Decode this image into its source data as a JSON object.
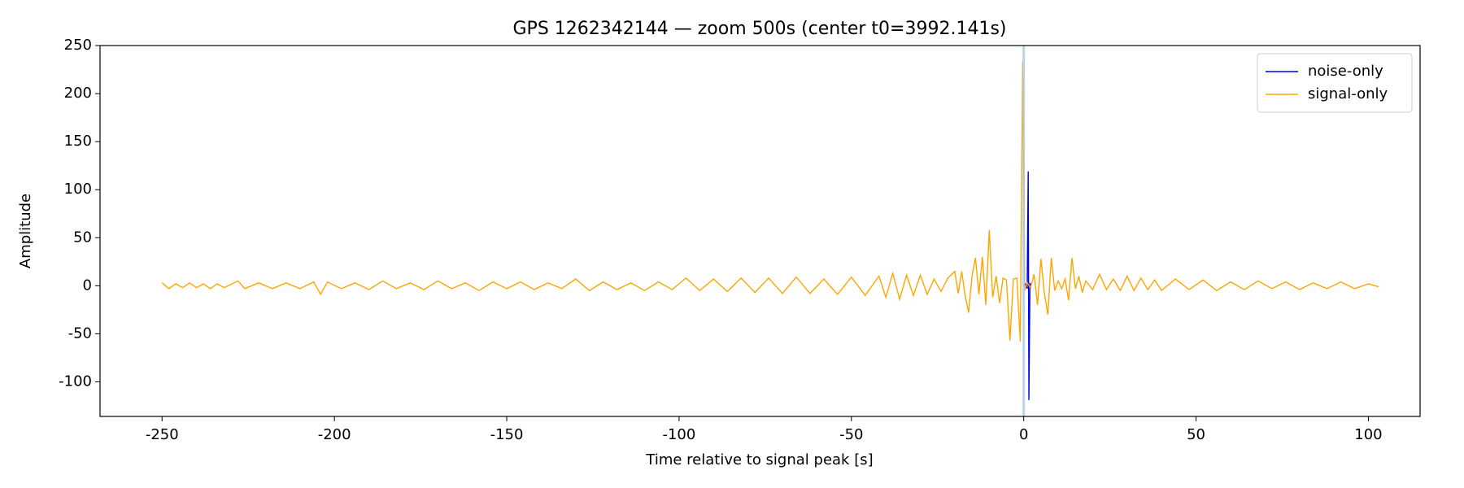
{
  "chart_data": {
    "type": "line",
    "title": "GPS 1262342144 — zoom 500s (center t0=3992.141s)",
    "x_label": "Time relative to signal peak [s]",
    "y_label": "Amplitude",
    "xlim": [
      -268,
      115
    ],
    "ylim": [
      -136,
      250
    ],
    "xticks": [
      -250,
      -200,
      -150,
      -100,
      -50,
      0,
      50,
      100
    ],
    "yticks": [
      -100,
      -50,
      0,
      50,
      100,
      150,
      200,
      250
    ],
    "legend": "upper right",
    "vline": {
      "x": 0,
      "color": "#a6c8e8"
    },
    "series": [
      {
        "name": "noise-only",
        "color": "#0000ee",
        "x": [
          0,
          0.5,
          1,
          1.3,
          1.5,
          1.8,
          2
        ],
        "values": [
          0,
          2,
          -3,
          119,
          -119,
          3,
          0
        ]
      },
      {
        "name": "signal-only",
        "color": "#ffa500",
        "x": [
          -250,
          -248,
          -246,
          -244,
          -242,
          -240,
          -238,
          -236,
          -234,
          -232,
          -228,
          -226,
          -222,
          -218,
          -214,
          -210,
          -206,
          -204,
          -202,
          -198,
          -194,
          -190,
          -186,
          -182,
          -178,
          -174,
          -170,
          -166,
          -162,
          -158,
          -154,
          -150,
          -146,
          -142,
          -138,
          -134,
          -130,
          -126,
          -122,
          -118,
          -114,
          -110,
          -106,
          -102,
          -98,
          -94,
          -90,
          -86,
          -82,
          -78,
          -74,
          -70,
          -66,
          -62,
          -58,
          -54,
          -50,
          -46,
          -42,
          -40,
          -38,
          -36,
          -34,
          -32,
          -30,
          -28,
          -26,
          -24,
          -22,
          -20,
          -19,
          -18,
          -17,
          -16,
          -15,
          -14,
          -13,
          -12,
          -11,
          -10,
          -9,
          -8,
          -7,
          -6,
          -5,
          -4,
          -3,
          -2,
          -1,
          -0.3,
          0.3,
          1,
          2,
          3,
          4,
          5,
          6,
          7,
          8,
          9,
          10,
          11,
          12,
          13,
          14,
          15,
          16,
          17,
          18,
          20,
          22,
          24,
          26,
          28,
          30,
          32,
          34,
          36,
          38,
          40,
          44,
          48,
          52,
          56,
          60,
          64,
          68,
          72,
          76,
          80,
          84,
          88,
          92,
          96,
          100,
          103
        ],
        "values": [
          3,
          -3,
          2,
          -2,
          3,
          -2,
          2,
          -3,
          2,
          -2,
          5,
          -3,
          3,
          -3,
          3,
          -3,
          4,
          -9,
          4,
          -3,
          3,
          -4,
          5,
          -3,
          3,
          -4,
          5,
          -3,
          3,
          -5,
          4,
          -3,
          4,
          -4,
          3,
          -3,
          7,
          -5,
          4,
          -4,
          3,
          -5,
          4,
          -4,
          8,
          -5,
          7,
          -6,
          8,
          -7,
          8,
          -8,
          9,
          -8,
          7,
          -9,
          9,
          -10,
          10,
          -12,
          13,
          -14,
          11,
          -10,
          11,
          -9,
          7,
          -6,
          8,
          15,
          -8,
          15,
          -10,
          -28,
          10,
          29,
          -9,
          30,
          -20,
          58,
          -12,
          10,
          -18,
          8,
          6,
          -57,
          7,
          8,
          -58,
          233,
          -5,
          3,
          -2,
          12,
          -20,
          28,
          -8,
          -30,
          29,
          -5,
          5,
          -3,
          7,
          -15,
          29,
          -3,
          10,
          -7,
          5,
          -4,
          12,
          -4,
          7,
          -5,
          10,
          -5,
          8,
          -4,
          6,
          -5,
          7,
          -4,
          6,
          -5,
          4,
          -4,
          5,
          -3,
          4,
          -4,
          3,
          -3,
          4,
          -3,
          2,
          -1
        ]
      }
    ]
  }
}
